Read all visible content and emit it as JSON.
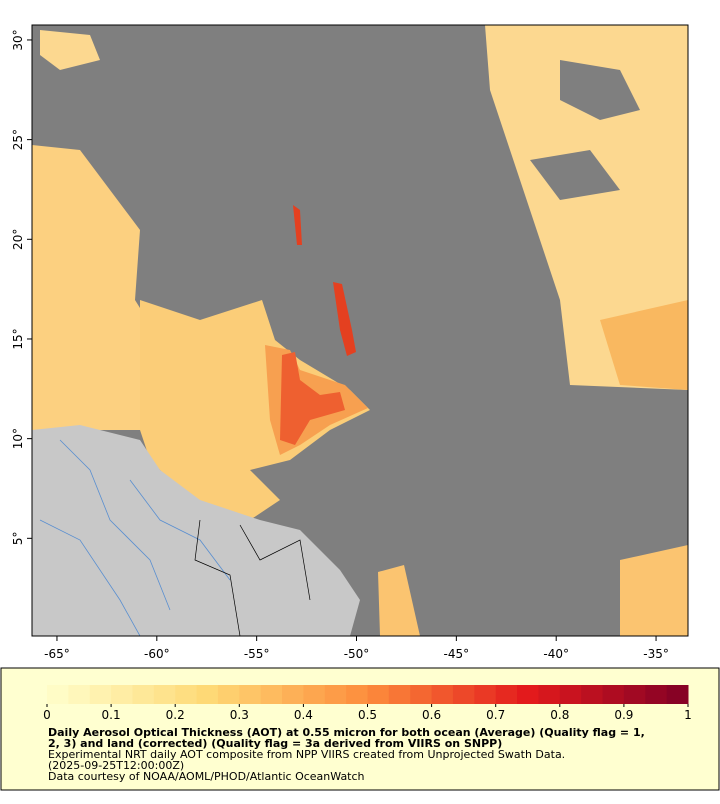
{
  "map": {
    "xlim": [
      -66.25,
      -33.4
    ],
    "ylim": [
      0.1,
      30.75
    ],
    "xticks": [
      {
        "value": -65,
        "label": "-65°"
      },
      {
        "value": -60,
        "label": "-60°"
      },
      {
        "value": -55,
        "label": "-55°"
      },
      {
        "value": -50,
        "label": "-50°"
      },
      {
        "value": -45,
        "label": "-45°"
      },
      {
        "value": -40,
        "label": "-40°"
      },
      {
        "value": -35,
        "label": "-35°"
      }
    ],
    "yticks": [
      {
        "value": 5,
        "label": "5°"
      },
      {
        "value": 10,
        "label": "10°"
      },
      {
        "value": 15,
        "label": "15°"
      },
      {
        "value": 20,
        "label": "20°"
      },
      {
        "value": 25,
        "label": "25°"
      },
      {
        "value": 30,
        "label": "30°"
      }
    ]
  },
  "colorbar": {
    "lim": [
      0,
      1
    ],
    "ticks": [
      0,
      0.1,
      0.2,
      0.3,
      0.4,
      0.5,
      0.6,
      0.7,
      0.8,
      0.9,
      1
    ]
  },
  "caption": {
    "title_lines": [
      "Daily Aerosol Optical Thickness (AOT) at 0.55 micron for both ocean (Average) (Quality flag = 1,",
      "2, 3) and land (corrected) (Quality flag = 3a derived from VIIRS on SNPP)"
    ],
    "lines": [
      "Experimental NRT daily AOT composite from NPP VIIRS created from Unprojected Swath Data.",
      "(2025-09-25T12:00:00Z)",
      "Data courtesy of NOAA/AOML/PHOD/Atlantic OceanWatch"
    ]
  }
}
